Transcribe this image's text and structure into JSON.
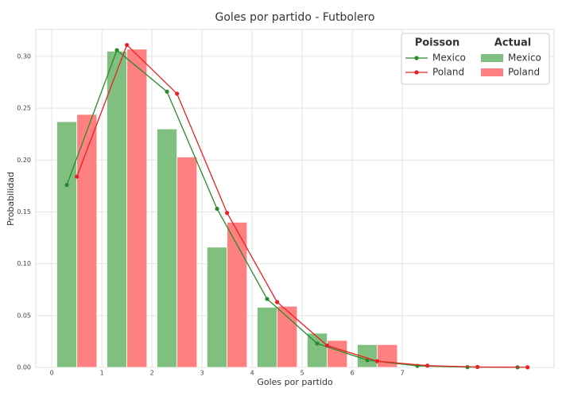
{
  "chart_data": {
    "type": "bar",
    "title": "Goles por partido - Futbolero",
    "xlabel": "Goles por partido",
    "ylabel": "Probabilidad",
    "xlim": [
      -0.32,
      10.03
    ],
    "ylim": [
      0,
      0.326
    ],
    "xticks": [
      0,
      1,
      2,
      3,
      4,
      5,
      6,
      7
    ],
    "yticks": [
      {
        "value": 0,
        "label": "0.00"
      },
      {
        "value": 0.05,
        "label": "0.05"
      },
      {
        "value": 0.1,
        "label": "0.10"
      },
      {
        "value": 0.15,
        "label": "0.15"
      },
      {
        "value": 0.2,
        "label": "0.20"
      },
      {
        "value": 0.25,
        "label": "0.25"
      },
      {
        "value": 0.3,
        "label": "0.30"
      }
    ],
    "grid": true,
    "legend_loc": "upper right",
    "legend_groups": [
      "Poisson",
      "Actual"
    ],
    "series": [
      {
        "name": "Mexico",
        "type": "line",
        "group": "Poisson",
        "color": "#2a8a2a",
        "x": [
          0.3,
          1.3,
          2.3,
          3.3,
          4.3,
          5.3,
          6.3,
          7.3,
          8.3,
          9.3
        ],
        "values": [
          0.176,
          0.306,
          0.266,
          0.153,
          0.066,
          0.023,
          0.007,
          0.0015,
          0.0003,
          0.0001
        ]
      },
      {
        "name": "Poland",
        "type": "line",
        "group": "Poisson",
        "color": "#e82222",
        "x": [
          0.5,
          1.5,
          2.5,
          3.5,
          4.5,
          5.5,
          6.5,
          7.5,
          8.5,
          9.5
        ],
        "values": [
          0.184,
          0.311,
          0.264,
          0.149,
          0.063,
          0.021,
          0.006,
          0.0017,
          0.0004,
          0.0001
        ]
      },
      {
        "name": "Mexico",
        "type": "bar",
        "group": "Actual",
        "color": "#7fbf7f",
        "width": 0.4,
        "x": [
          0.1,
          1.1,
          2.1,
          3.1,
          4.1,
          5.1,
          6.1
        ],
        "values": [
          0.237,
          0.305,
          0.23,
          0.116,
          0.058,
          0.033,
          0.022
        ]
      },
      {
        "name": "Poland",
        "type": "bar",
        "group": "Actual",
        "color": "#ff8080",
        "width": 0.4,
        "x": [
          0.5,
          1.5,
          2.5,
          3.5,
          4.5,
          5.5,
          6.5
        ],
        "values": [
          0.244,
          0.307,
          0.203,
          0.14,
          0.059,
          0.026,
          0.022
        ]
      }
    ]
  }
}
